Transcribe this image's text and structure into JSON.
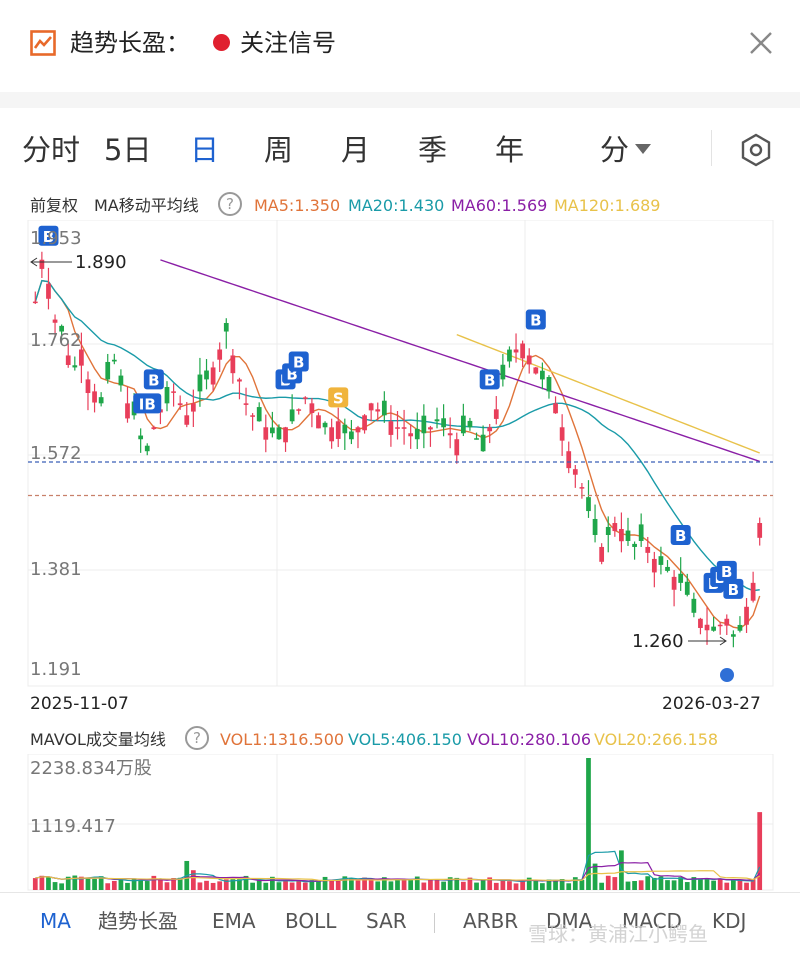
{
  "header": {
    "title": "趋势长盈：",
    "signal_label": "关注信号",
    "signal_color": "#e0202f"
  },
  "period_tabs": [
    {
      "label": "分时"
    },
    {
      "label": "5日"
    },
    {
      "label": "日",
      "active": true
    },
    {
      "label": "周"
    },
    {
      "label": "月"
    },
    {
      "label": "季"
    },
    {
      "label": "年"
    },
    {
      "label": "分"
    }
  ],
  "ma_legend": {
    "prefix": "前复权",
    "name": "MA移动平均线",
    "help": "?",
    "items": [
      {
        "label": "MA5:1.350",
        "color": "#e0743a"
      },
      {
        "label": "MA20:1.430",
        "color": "#1a9ba8"
      },
      {
        "label": "MA60:1.569",
        "color": "#8a1fa6"
      },
      {
        "label": "MA120:1.689",
        "color": "#e8c24a"
      }
    ]
  },
  "chart_data": {
    "type": "candlestick",
    "y_ticks": [
      "1.953",
      "1.762",
      "1.572",
      "1.381",
      "1.191"
    ],
    "ylim": [
      1.191,
      1.953
    ],
    "annotations": {
      "high": "1.890",
      "low": "1.260"
    },
    "price_lines": [
      1.562,
      1.506
    ],
    "x_start": "2025-11-07",
    "x_end": "2026-03-27",
    "signals": [
      {
        "label": "B",
        "index": 2
      },
      {
        "label": "IB",
        "index": 17
      },
      {
        "label": "B",
        "index": 18
      },
      {
        "label": "B",
        "index": 38
      },
      {
        "label": "B",
        "index": 39
      },
      {
        "label": "B",
        "index": 40
      },
      {
        "label": "S",
        "index": 46
      },
      {
        "label": "B",
        "index": 69
      },
      {
        "label": "B",
        "index": 76
      },
      {
        "label": "B",
        "index": 98
      },
      {
        "label": "B",
        "index": 103
      },
      {
        "label": "B",
        "index": 104
      },
      {
        "label": "B",
        "index": 105
      },
      {
        "label": "B",
        "index": 106
      }
    ],
    "volume": {
      "title": "MAVOL成交量均线",
      "help": "?",
      "legend": [
        {
          "label": "VOL1:1316.500",
          "color": "#e0743a"
        },
        {
          "label": "VOL5:406.150",
          "color": "#1a9ba8"
        },
        {
          "label": "VOL10:280.106",
          "color": "#8a1fa6"
        },
        {
          "label": "VOL20:266.158",
          "color": "#e8c24a"
        }
      ],
      "y_ticks": [
        "2238.834万股",
        "1119.417"
      ]
    }
  },
  "indicator_tabs": [
    {
      "label": "MA",
      "active": true
    },
    {
      "label": "趋势长盈"
    },
    {
      "label": "EMA"
    },
    {
      "label": "BOLL"
    },
    {
      "label": "SAR"
    },
    {
      "label": "ARBR"
    },
    {
      "label": "DMA"
    },
    {
      "label": "MACD"
    },
    {
      "label": "KDJ"
    }
  ],
  "watermark": "雪球：黄浦江小鳄鱼",
  "colors": {
    "up": "#e83e5a",
    "down": "#1fa64a",
    "accent": "#1e62d0",
    "signal_b": "#1e62d0",
    "signal_s": "#f0b43c"
  }
}
